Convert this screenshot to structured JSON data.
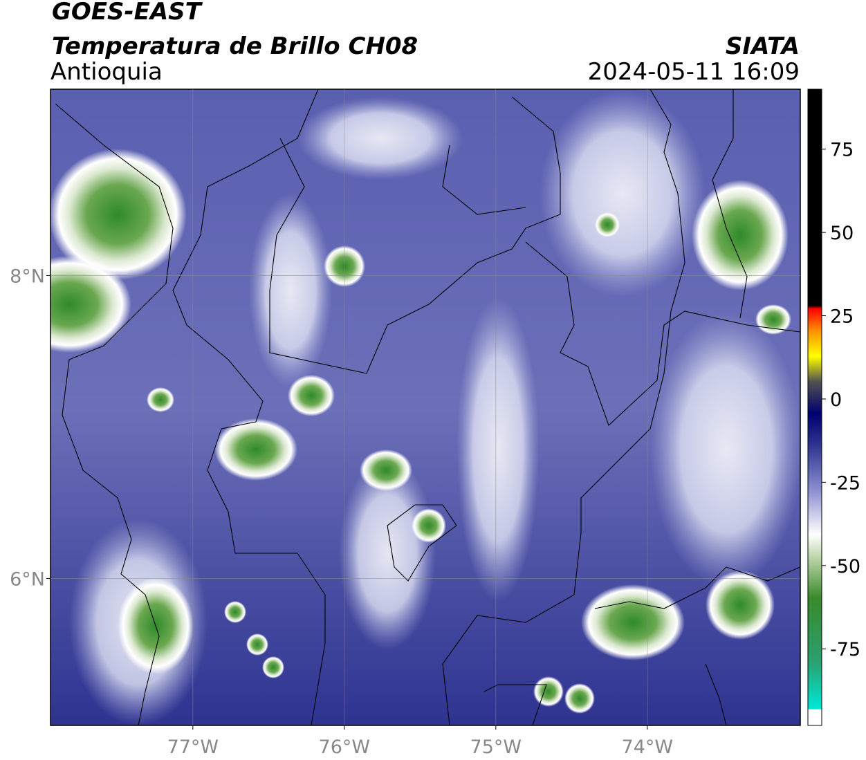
{
  "header": {
    "title": "GOES-EAST",
    "subtitle": "Temperatura de Brillo CH08",
    "source": "SIATA",
    "region": "Antioquia",
    "timestamp": "2024-05-11 16:09"
  },
  "map": {
    "xlim": [
      -77.94,
      -72.99
    ],
    "ylim": [
      5.03,
      9.23
    ],
    "xticks": [
      {
        "value": -77,
        "label": "77°W"
      },
      {
        "value": -76,
        "label": "76°W"
      },
      {
        "value": -75,
        "label": "75°W"
      },
      {
        "value": -74,
        "label": "74°W"
      }
    ],
    "yticks": [
      {
        "value": 8,
        "label": "8°N"
      },
      {
        "value": 6,
        "label": "6°N"
      }
    ],
    "grid": true
  },
  "colorbar": {
    "lim": [
      -98,
      93
    ],
    "ticks": [
      75,
      50,
      25,
      0,
      -25,
      -50,
      -75
    ]
  }
}
